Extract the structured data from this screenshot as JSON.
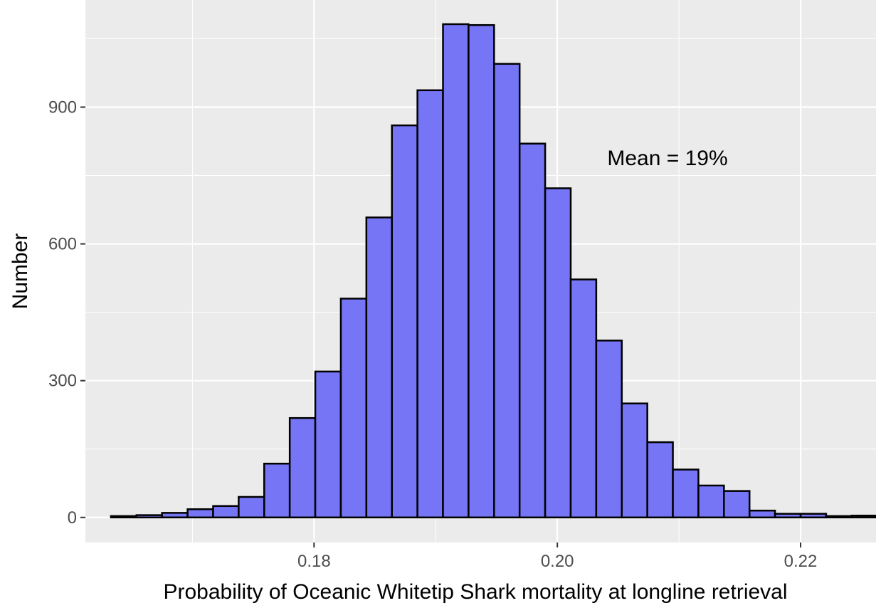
{
  "chart_data": {
    "type": "bar",
    "title": "",
    "xlabel": "Probability of Oceanic Whitetip Shark mortality at longline retrieval",
    "ylabel": "Number",
    "annotation": "Mean = 19%",
    "xlim": [
      0.1612,
      0.2262
    ],
    "ylim": [
      -55,
      1135
    ],
    "x_ticks": [
      0.18,
      0.2,
      0.22
    ],
    "x_tick_labels": [
      "0.18",
      "0.20",
      "0.22"
    ],
    "x_minor_ticks": [
      0.17,
      0.19,
      0.21
    ],
    "y_ticks": [
      0,
      300,
      600,
      900
    ],
    "y_tick_labels": [
      "0",
      "300",
      "600",
      "900"
    ],
    "y_minor_ticks": [
      150,
      450,
      750,
      1050
    ],
    "grid": true,
    "bin_width": 0.0021,
    "bin_start": 0.1633,
    "values": [
      3,
      5,
      10,
      18,
      25,
      45,
      118,
      218,
      320,
      480,
      658,
      860,
      937,
      1082,
      1080,
      995,
      820,
      722,
      522,
      388,
      250,
      165,
      105,
      70,
      58,
      15,
      8,
      8,
      3,
      4
    ],
    "colors": {
      "fill": "#7575f5",
      "stroke": "#000000",
      "panel": "#ebebeb",
      "grid": "#ffffff"
    }
  }
}
